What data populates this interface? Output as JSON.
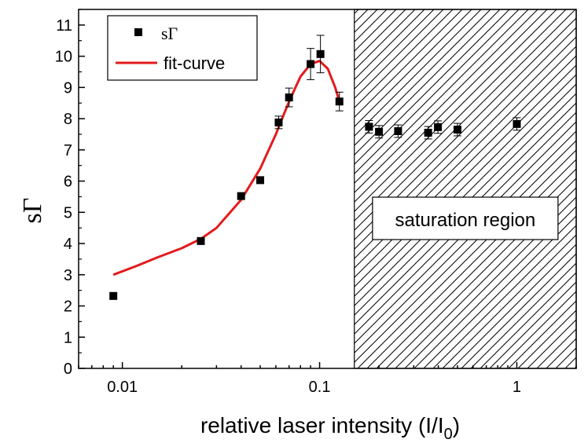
{
  "chart_data": {
    "type": "scatter",
    "title": "",
    "xlabel": "relative laser intensity (I/I",
    "xlabel_sub": "0",
    "xlabel_end": ")",
    "ylabel": "sΓ",
    "x_scale": "log",
    "xlim": [
      0.006,
      2.0
    ],
    "ylim": [
      0,
      11.5
    ],
    "x_ticks": [
      0.01,
      0.1,
      1
    ],
    "x_tick_labels": [
      "0.01",
      "0.1",
      "1"
    ],
    "y_ticks": [
      0,
      1,
      2,
      3,
      4,
      5,
      6,
      7,
      8,
      9,
      10,
      11
    ],
    "y_tick_labels": [
      "0",
      "1",
      "2",
      "3",
      "4",
      "5",
      "6",
      "7",
      "8",
      "9",
      "10",
      "11"
    ],
    "grid": false,
    "legend_position": "top-left",
    "series": [
      {
        "name": "sΓ",
        "kind": "points",
        "color": "#000000",
        "points": [
          {
            "x": 0.009,
            "y": 2.32,
            "err": 0
          },
          {
            "x": 0.025,
            "y": 4.08,
            "err": 0
          },
          {
            "x": 0.04,
            "y": 5.52,
            "err": 0
          },
          {
            "x": 0.05,
            "y": 6.03,
            "err": 0
          },
          {
            "x": 0.062,
            "y": 7.88,
            "err": 0.2
          },
          {
            "x": 0.07,
            "y": 8.68,
            "err": 0.3
          },
          {
            "x": 0.09,
            "y": 9.75,
            "err": 0.5
          },
          {
            "x": 0.101,
            "y": 10.07,
            "err": 0.6
          },
          {
            "x": 0.126,
            "y": 8.55,
            "err": 0.3
          },
          {
            "x": 0.178,
            "y": 7.74,
            "err": 0.2
          },
          {
            "x": 0.2,
            "y": 7.58,
            "err": 0.2
          },
          {
            "x": 0.25,
            "y": 7.6,
            "err": 0.2
          },
          {
            "x": 0.355,
            "y": 7.55,
            "err": 0.2
          },
          {
            "x": 0.398,
            "y": 7.73,
            "err": 0.2
          },
          {
            "x": 0.5,
            "y": 7.65,
            "err": 0.2
          },
          {
            "x": 1.0,
            "y": 7.83,
            "err": 0.2
          }
        ]
      },
      {
        "name": "fit-curve",
        "kind": "line",
        "color": "#e41a1c",
        "x": [
          0.009,
          0.012,
          0.015,
          0.02,
          0.025,
          0.03,
          0.04,
          0.05,
          0.06,
          0.07,
          0.08,
          0.09,
          0.1,
          0.11,
          0.12,
          0.126
        ],
        "y": [
          3.0,
          3.3,
          3.55,
          3.85,
          4.15,
          4.5,
          5.4,
          6.4,
          7.5,
          8.55,
          9.35,
          9.75,
          9.85,
          9.6,
          9.0,
          8.55
        ]
      }
    ],
    "annotations": [
      {
        "text": "saturation region",
        "region_x": [
          0.15,
          2.0
        ],
        "fill": "hatched"
      }
    ]
  }
}
